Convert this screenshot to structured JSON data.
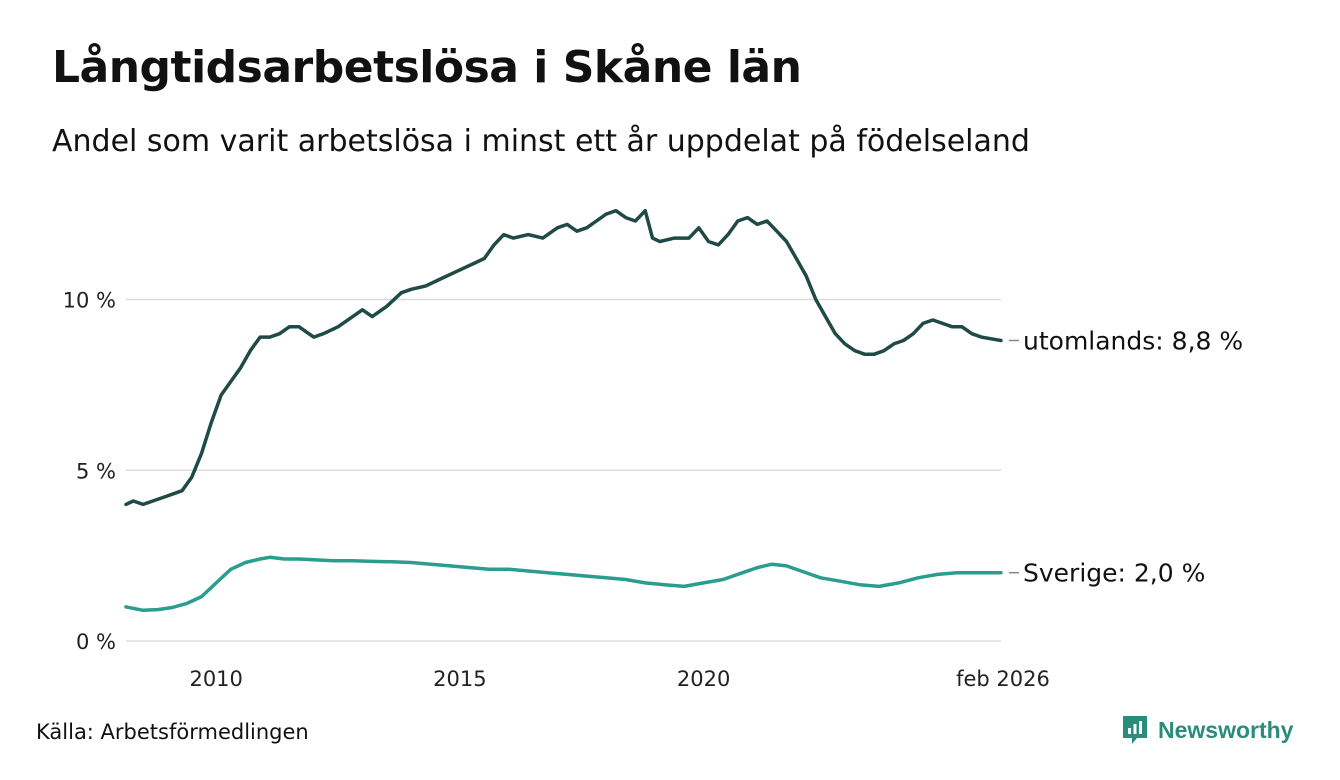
{
  "header": {
    "title": "Långtidsarbetslösa i Skåne län",
    "subtitle": "Andel som varit arbetslösa i minst ett år uppdelat på födelseland"
  },
  "footer": {
    "source": "Källa: Arbetsförmedlingen",
    "brand": "Newsworthy",
    "brand_icon": "newsworthy-logo-icon"
  },
  "colors": {
    "utomlands": "#1f4a45",
    "sverige": "#2a9d8f",
    "grid": "#dddddd",
    "brand": "#2a8c7a"
  },
  "chart_data": {
    "type": "line",
    "title": "Långtidsarbetslösa i Skåne län",
    "xlabel": "",
    "ylabel": "",
    "ylim": [
      0,
      13.5
    ],
    "xlim": [
      2008.15,
      2026.1
    ],
    "y_ticks": [
      0,
      5,
      10
    ],
    "y_tick_labels": [
      "0 %",
      "5 %",
      "10 %"
    ],
    "x_ticks": [
      2010,
      2015,
      2020,
      2026.1
    ],
    "x_tick_labels": [
      "2010",
      "2015",
      "2020",
      "feb 2026"
    ],
    "grid": true,
    "series": [
      {
        "name": "utomlands",
        "end_label": "utomlands: 8,8 %",
        "x": [
          2008.15,
          2008.3,
          2008.5,
          2008.7,
          2008.9,
          2009.1,
          2009.3,
          2009.5,
          2009.7,
          2009.9,
          2010.1,
          2010.3,
          2010.5,
          2010.7,
          2010.9,
          2011.1,
          2011.3,
          2011.5,
          2011.7,
          2011.9,
          2012.0,
          2012.2,
          2012.5,
          2012.8,
          2013.0,
          2013.2,
          2013.5,
          2013.8,
          2014.0,
          2014.3,
          2014.6,
          2014.9,
          2015.2,
          2015.5,
          2015.7,
          2015.9,
          2016.1,
          2016.4,
          2016.7,
          2017.0,
          2017.2,
          2017.4,
          2017.6,
          2017.8,
          2018.0,
          2018.2,
          2018.4,
          2018.6,
          2018.8,
          2018.95,
          2019.1,
          2019.4,
          2019.7,
          2019.9,
          2020.1,
          2020.3,
          2020.5,
          2020.7,
          2020.9,
          2021.1,
          2021.3,
          2021.5,
          2021.7,
          2021.9,
          2022.1,
          2022.3,
          2022.5,
          2022.7,
          2022.9,
          2023.1,
          2023.3,
          2023.5,
          2023.7,
          2023.9,
          2024.1,
          2024.3,
          2024.5,
          2024.7,
          2024.9,
          2025.1,
          2025.3,
          2025.5,
          2025.7,
          2025.9,
          2026.1
        ],
        "values": [
          4.0,
          4.1,
          4.0,
          4.1,
          4.2,
          4.3,
          4.4,
          4.8,
          5.5,
          6.4,
          7.2,
          7.6,
          8.0,
          8.5,
          8.9,
          8.9,
          9.0,
          9.2,
          9.2,
          9.0,
          8.9,
          9.0,
          9.2,
          9.5,
          9.7,
          9.5,
          9.8,
          10.2,
          10.3,
          10.4,
          10.6,
          10.8,
          11.0,
          11.2,
          11.6,
          11.9,
          11.8,
          11.9,
          11.8,
          12.1,
          12.2,
          12.0,
          12.1,
          12.3,
          12.5,
          12.6,
          12.4,
          12.3,
          12.6,
          11.8,
          11.7,
          11.8,
          11.8,
          12.1,
          11.7,
          11.6,
          11.9,
          12.3,
          12.4,
          12.2,
          12.3,
          12.0,
          11.7,
          11.2,
          10.7,
          10.0,
          9.5,
          9.0,
          8.7,
          8.5,
          8.4,
          8.4,
          8.5,
          8.7,
          8.8,
          9.0,
          9.3,
          9.4,
          9.3,
          9.2,
          9.2,
          9.0,
          8.9,
          8.85,
          8.8
        ]
      },
      {
        "name": "Sverige",
        "end_label": "Sverige: 2,0 %",
        "x": [
          2008.15,
          2008.5,
          2008.8,
          2009.1,
          2009.4,
          2009.7,
          2010.0,
          2010.3,
          2010.6,
          2010.9,
          2011.1,
          2011.4,
          2011.7,
          2012.0,
          2012.4,
          2012.8,
          2013.2,
          2013.6,
          2014.0,
          2014.4,
          2014.8,
          2015.2,
          2015.6,
          2016.0,
          2016.4,
          2016.8,
          2017.2,
          2017.6,
          2018.0,
          2018.4,
          2018.8,
          2019.2,
          2019.6,
          2020.0,
          2020.4,
          2020.8,
          2021.1,
          2021.4,
          2021.7,
          2022.0,
          2022.4,
          2022.8,
          2023.2,
          2023.6,
          2024.0,
          2024.4,
          2024.8,
          2025.2,
          2025.6,
          2026.1
        ],
        "values": [
          1.0,
          0.9,
          0.92,
          0.98,
          1.1,
          1.3,
          1.7,
          2.1,
          2.3,
          2.4,
          2.45,
          2.4,
          2.4,
          2.38,
          2.35,
          2.35,
          2.33,
          2.32,
          2.3,
          2.25,
          2.2,
          2.15,
          2.1,
          2.1,
          2.05,
          2.0,
          1.95,
          1.9,
          1.85,
          1.8,
          1.7,
          1.65,
          1.6,
          1.7,
          1.8,
          2.0,
          2.15,
          2.25,
          2.2,
          2.05,
          1.85,
          1.75,
          1.65,
          1.6,
          1.7,
          1.85,
          1.95,
          2.0,
          2.0,
          2.0
        ]
      }
    ]
  }
}
